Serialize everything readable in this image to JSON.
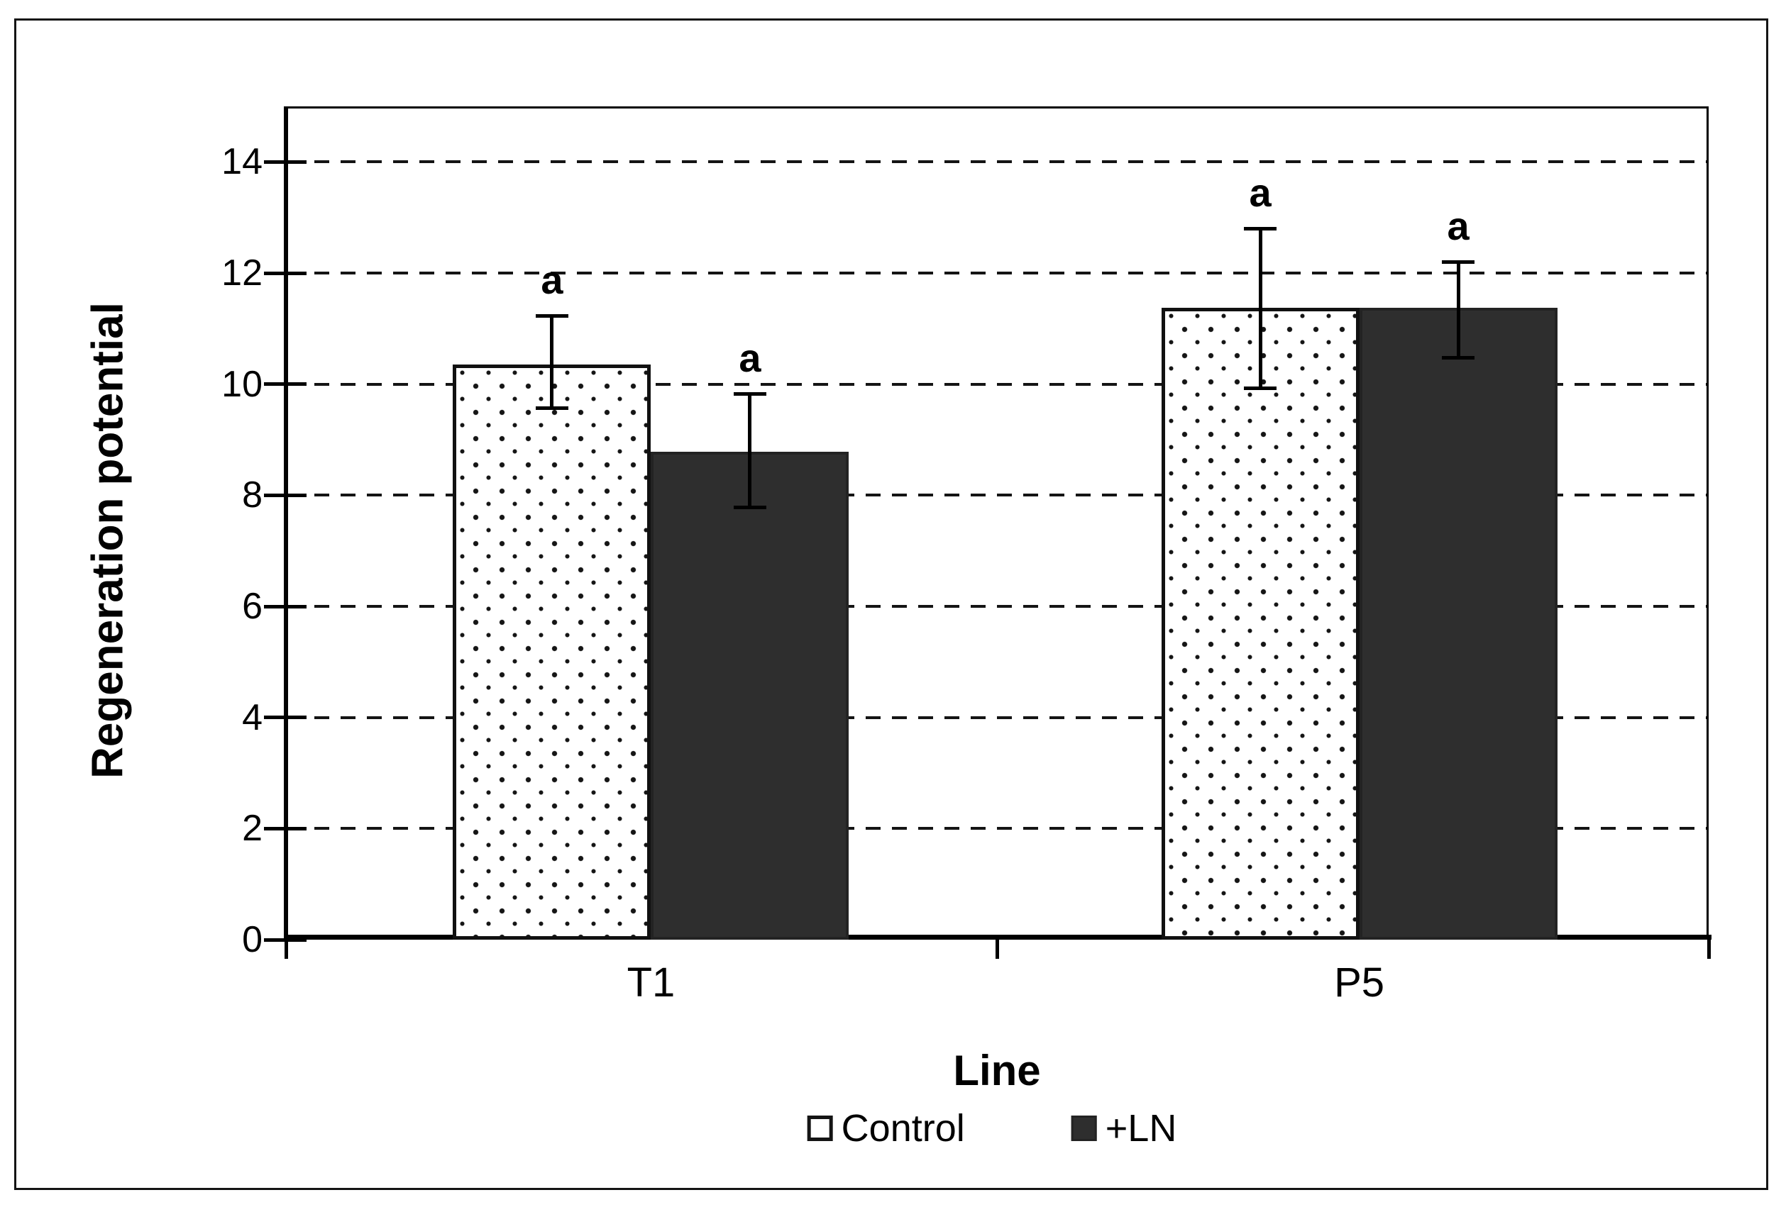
{
  "figure": {
    "y_axis_title": "Regeneration potential",
    "x_axis_title": "Line"
  },
  "legend": {
    "items": [
      {
        "label": "Control",
        "marker": "open-square-icon"
      },
      {
        "label": "+LN",
        "marker": "filled-square-icon"
      }
    ]
  },
  "colors": {
    "background": "#ffffff",
    "axis_black": "#000000",
    "dark_bar_fill": "#2e2e2e",
    "dotted_bar_fill": "#ffffff",
    "dot_color": "#151515"
  },
  "chart_data": {
    "type": "bar",
    "title": "",
    "xlabel": "Line",
    "ylabel": "Regeneration potential",
    "categories": [
      "T1",
      "P5"
    ],
    "series": [
      {
        "name": "Control",
        "style": "dotted-white",
        "values": [
          10.35,
          11.37
        ],
        "error_plus": [
          0.91,
          1.46
        ],
        "error_minus": [
          0.82,
          1.48
        ]
      },
      {
        "name": "+LN",
        "style": "solid-dark",
        "values": [
          8.78,
          11.37
        ],
        "error_plus": [
          1.07,
          0.86
        ],
        "error_minus": [
          1.03,
          0.93
        ]
      }
    ],
    "significance_labels": [
      [
        "a",
        "a"
      ],
      [
        "a",
        "a"
      ]
    ],
    "ylim": [
      0,
      15
    ],
    "yticks": [
      0,
      2,
      4,
      6,
      8,
      10,
      12,
      14
    ],
    "grid": "horizontal dashed lines at yticks above 0",
    "legend_position": "bottom-center",
    "error_bars": true
  }
}
